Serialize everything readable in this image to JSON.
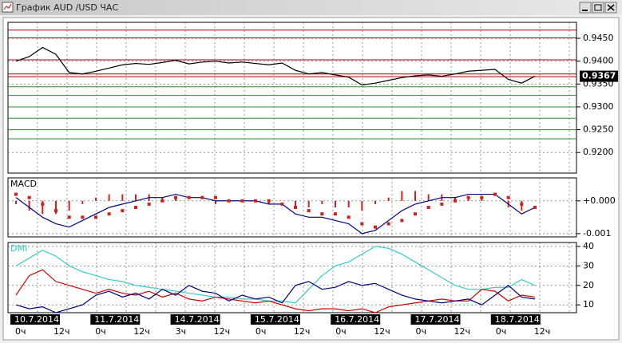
{
  "window": {
    "title": "График AUD /USD ЧАС"
  },
  "time_axis": [
    {
      "date": "10.7.2014",
      "hours": [
        "0ч",
        "12ч"
      ]
    },
    {
      "date": "11.7.2014",
      "hours": [
        "0ч",
        "12ч"
      ]
    },
    {
      "date": "14.7.2014",
      "hours": [
        "3ч",
        "12ч"
      ]
    },
    {
      "date": "15.7.2014",
      "hours": [
        "0ч",
        "12ч"
      ]
    },
    {
      "date": "16.7.2014",
      "hours": [
        "0ч",
        "12ч"
      ]
    },
    {
      "date": "17.7.2014",
      "hours": [
        "0ч",
        "12ч"
      ]
    },
    {
      "date": "18.7.2014",
      "hours": [
        "0ч",
        "12ч"
      ]
    }
  ],
  "chart_data": [
    {
      "type": "line",
      "ylim": [
        0.9155,
        0.9485
      ],
      "yticks": [
        {
          "value": 0.945,
          "label": "0.9450"
        },
        {
          "value": 0.94,
          "label": "0.9400"
        },
        {
          "value": 0.935,
          "label": "0.9350"
        },
        {
          "value": 0.93,
          "label": "0.9300"
        },
        {
          "value": 0.925,
          "label": "0.9250"
        },
        {
          "value": 0.92,
          "label": "0.9200"
        }
      ],
      "grid": true,
      "current_price": 0.9367,
      "levels": [
        {
          "value": 0.9468,
          "color": "#a00000"
        },
        {
          "value": 0.9451,
          "color": "#a00000"
        },
        {
          "value": 0.9403,
          "color": "#a00000"
        },
        {
          "value": 0.9372,
          "color": "#a00000"
        },
        {
          "value": 0.9366,
          "color": "#a00000"
        },
        {
          "value": 0.9344,
          "color": "#2e8b2e"
        },
        {
          "value": 0.9325,
          "color": "#2e8b2e"
        },
        {
          "value": 0.93,
          "color": "#2e8b2e"
        },
        {
          "value": 0.9275,
          "color": "#2e8b2e"
        },
        {
          "value": 0.925,
          "color": "#2e8b2e"
        },
        {
          "value": 0.923,
          "color": "#2e8b2e"
        }
      ],
      "series": [
        {
          "color": "#000000",
          "style": "line",
          "values": [
            0.94,
            0.941,
            0.943,
            0.9415,
            0.9375,
            0.9372,
            0.9378,
            0.9385,
            0.9392,
            0.9395,
            0.9393,
            0.9397,
            0.9402,
            0.9394,
            0.9398,
            0.94,
            0.9396,
            0.9398,
            0.9395,
            0.9392,
            0.9396,
            0.938,
            0.9372,
            0.9375,
            0.937,
            0.9365,
            0.9348,
            0.9352,
            0.9358,
            0.9364,
            0.9368,
            0.937,
            0.9367,
            0.9372,
            0.9378,
            0.938,
            0.9382,
            0.936,
            0.9352,
            0.9367
          ]
        }
      ]
    },
    {
      "type": "line",
      "title": "MACD",
      "ylim": [
        -0.0011,
        0.0007
      ],
      "yticks": [
        {
          "value": 0,
          "label": "+0.000"
        },
        {
          "value": -0.001,
          "label": "-0.001"
        }
      ],
      "grid": true,
      "series": [
        {
          "color": "#cc2222",
          "style": "bar",
          "values": [
            -0.0001,
            -0.0003,
            -0.0004,
            -0.0004,
            -0.0003,
            -0.0001,
            0.0001,
            0.0002,
            0.0002,
            0.0002,
            0.0002,
            0.0001,
            0.0001,
            0,
            0,
            -0.0001,
            0,
            0,
            0,
            -0.0001,
            0,
            -0.0002,
            -0.0002,
            -0.0001,
            -0.0002,
            -0.0002,
            -0.0003,
            -0.0001,
            0.0001,
            0.0003,
            0.0003,
            0.0002,
            0.0002,
            0.0001,
            0.0001,
            0.0001,
            0,
            -0.0002,
            -0.0003,
            0
          ]
        },
        {
          "color": "#000080",
          "style": "line",
          "values": [
            0.0001,
            -0.0002,
            -0.0005,
            -0.0007,
            -0.0008,
            -0.0006,
            -0.0004,
            -0.0002,
            -0.0001,
            0,
            0.0001,
            0.0001,
            0.0002,
            0.0001,
            0.0001,
            0,
            0,
            0,
            0,
            -0.0001,
            -0.0001,
            -0.0004,
            -0.0005,
            -0.0005,
            -0.0006,
            -0.0007,
            -0.001,
            -0.0009,
            -0.0006,
            -0.0003,
            -0.0001,
            0,
            0.0001,
            0.0001,
            0.0002,
            0.0002,
            0.0002,
            -0.0001,
            -0.0004,
            -0.0002
          ]
        },
        {
          "color": "#cc2222",
          "style": "dots",
          "values": [
            0.0002,
            0.0001,
            -0.0001,
            -0.0003,
            -0.0005,
            -0.0005,
            -0.0005,
            -0.0004,
            -0.0003,
            -0.0002,
            -0.0001,
            0,
            0.0001,
            0.0001,
            0.0001,
            0.0001,
            0,
            0,
            0,
            0,
            -0.0001,
            -0.0002,
            -0.0003,
            -0.0004,
            -0.0004,
            -0.0005,
            -0.0007,
            -0.0008,
            -0.0007,
            -0.0006,
            -0.0004,
            -0.0002,
            -0.0001,
            0,
            0.0001,
            0.0001,
            0.0002,
            0.0001,
            -0.0001,
            -0.0002
          ]
        }
      ]
    },
    {
      "type": "line",
      "title": "DMI",
      "ylim": [
        6,
        42
      ],
      "yticks": [
        40,
        30,
        20,
        10
      ],
      "grid": true,
      "series": [
        {
          "color": "#33cccc",
          "style": "line",
          "values": [
            30,
            34,
            38,
            35,
            30,
            27,
            25,
            23,
            22,
            20,
            19,
            18,
            17,
            16,
            15,
            14,
            14,
            13,
            13,
            12,
            12,
            11,
            18,
            25,
            30,
            32,
            36,
            40,
            39,
            36,
            32,
            28,
            24,
            20,
            18,
            18,
            19,
            19,
            23,
            20
          ]
        },
        {
          "color": "#cc0000",
          "style": "line",
          "values": [
            15,
            25,
            28,
            22,
            20,
            18,
            16,
            18,
            16,
            15,
            17,
            14,
            16,
            13,
            12,
            14,
            13,
            12,
            11,
            12,
            10,
            8,
            7,
            8,
            8,
            7,
            8,
            6,
            9,
            10,
            11,
            12,
            13,
            12,
            12,
            18,
            17,
            12,
            15,
            14
          ]
        },
        {
          "color": "#000080",
          "style": "line",
          "values": [
            10,
            8,
            9,
            6,
            8,
            10,
            15,
            17,
            14,
            16,
            13,
            18,
            15,
            20,
            17,
            16,
            12,
            15,
            13,
            14,
            11,
            20,
            22,
            18,
            19,
            22,
            20,
            21,
            18,
            15,
            13,
            12,
            11,
            12,
            13,
            10,
            15,
            20,
            14,
            13
          ]
        }
      ]
    }
  ]
}
